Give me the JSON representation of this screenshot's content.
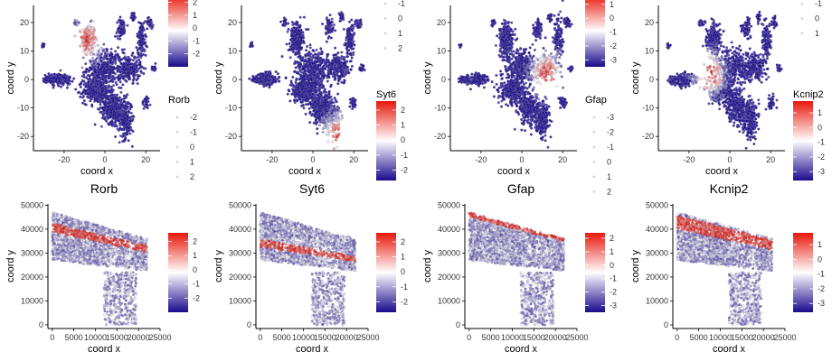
{
  "colors": {
    "low": "#1a0a8c",
    "mid": "#ffffff",
    "high": "#e8170c",
    "point_outline": "#8a8aa0",
    "grey": "#bfbfbf"
  },
  "chart_data": [
    {
      "type": "scatter",
      "title": "",
      "gene": "Rorb",
      "xlabel": "coord x",
      "ylabel": "coord y",
      "xlim": [
        -35,
        27
      ],
      "ylim": [
        -25,
        26
      ],
      "xticks": [
        "-20",
        "0",
        "20"
      ],
      "yticks": [
        "-20",
        "-10",
        "0",
        "10",
        "20"
      ],
      "color_legend": {
        "labels": [
          "2",
          "1",
          "0",
          "-1",
          "-2"
        ],
        "range": [
          -3,
          2.6
        ]
      },
      "size_legend": {
        "title": "Rorb",
        "labels": [
          "-2",
          "-1",
          "0",
          "1",
          "2"
        ]
      },
      "highlight": [
        -9,
        14
      ]
    },
    {
      "type": "scatter",
      "title": "",
      "gene": "Syt6",
      "xlabel": "coord x",
      "ylabel": "coord y",
      "xlim": [
        -35,
        27
      ],
      "ylim": [
        -25,
        26
      ],
      "xticks": [
        "-20",
        "0",
        "20"
      ],
      "yticks": [
        "-20",
        "-10",
        "0",
        "10",
        "20"
      ],
      "size_legend": {
        "title": "",
        "labels": [
          "-1",
          "0",
          "1",
          "2"
        ]
      },
      "color_legend": {
        "title": "Syt6",
        "labels": [
          "2",
          "1",
          "0",
          "-1",
          "-2"
        ],
        "range": [
          -2.7,
          2.6
        ]
      },
      "highlight": [
        12,
        -20
      ]
    },
    {
      "type": "scatter",
      "title": "",
      "gene": "Gfap",
      "xlabel": "coord x",
      "ylabel": "coord y",
      "xlim": [
        -35,
        27
      ],
      "ylim": [
        -25,
        26
      ],
      "xticks": [
        "-20",
        "0",
        "20"
      ],
      "yticks": [
        "-20",
        "-10",
        "0",
        "10",
        "20"
      ],
      "color_legend": {
        "labels": [
          "1",
          "0",
          "-1",
          "-2",
          "-3"
        ],
        "range": [
          -3.5,
          1.7
        ]
      },
      "size_legend": {
        "title": "Gfap",
        "labels": [
          "-3",
          "-2",
          "-1",
          "0",
          "1",
          "2"
        ]
      },
      "highlight": [
        12,
        2
      ]
    },
    {
      "type": "scatter",
      "title": "",
      "gene": "Kcnip2",
      "xlabel": "coord x",
      "ylabel": "coord y",
      "xlim": [
        -35,
        27
      ],
      "ylim": [
        -25,
        26
      ],
      "xticks": [
        "-20",
        "0",
        "20"
      ],
      "yticks": [
        "-20",
        "-10",
        "0",
        "10",
        "20"
      ],
      "size_legend": {
        "title": "",
        "labels": [
          "-1",
          "0",
          "1"
        ]
      },
      "color_legend": {
        "title": "Kcnip2",
        "labels": [
          "1",
          "0",
          "-1",
          "-2",
          "-3"
        ],
        "range": [
          -3.6,
          1.8
        ]
      },
      "highlight": [
        -10,
        2
      ]
    },
    {
      "type": "scatter",
      "title": "Rorb",
      "gene": "Rorb",
      "xlabel": "coord x",
      "ylabel": "coord y",
      "xlim": [
        -1000,
        25000
      ],
      "ylim": [
        -1500,
        50500
      ],
      "xticks": [
        "0",
        "5000",
        "10000",
        "15000",
        "20000",
        "25000"
      ],
      "yticks": [
        "0",
        "10000",
        "20000",
        "30000",
        "40000",
        "50000"
      ],
      "color_legend": {
        "labels": [
          "2",
          "1",
          "0",
          "-1",
          "-2"
        ],
        "range": [
          -3,
          2.6
        ]
      },
      "band": [
        0.22,
        0.42
      ]
    },
    {
      "type": "scatter",
      "title": "Syt6",
      "gene": "Syt6",
      "xlabel": "coord x",
      "ylabel": "coord y",
      "xlim": [
        -1000,
        25000
      ],
      "ylim": [
        -1500,
        50500
      ],
      "xticks": [
        "0",
        "5000",
        "10000",
        "15000",
        "20000",
        "25000"
      ],
      "yticks": [
        "0",
        "10000",
        "20000",
        "30000",
        "40000",
        "50000"
      ],
      "color_legend": {
        "labels": [
          "2",
          "1",
          "0",
          "-1",
          "-2"
        ],
        "range": [
          -2.7,
          2.6
        ]
      },
      "band": [
        0.55,
        0.72
      ]
    },
    {
      "type": "scatter",
      "title": "Gfap",
      "gene": "Gfap",
      "xlabel": "coord x",
      "ylabel": "coord y",
      "xlim": [
        -1000,
        25000
      ],
      "ylim": [
        -1500,
        50500
      ],
      "xticks": [
        "0",
        "5000",
        "10000",
        "15000",
        "20000",
        "25000"
      ],
      "yticks": [
        "0",
        "10000",
        "20000",
        "30000",
        "40000",
        "50000"
      ],
      "color_legend": {
        "labels": [
          "2",
          "1",
          "0",
          "-1",
          "-2",
          "-3"
        ],
        "range": [
          -3.5,
          2.4
        ]
      },
      "band": [
        0.0,
        0.1
      ]
    },
    {
      "type": "scatter",
      "title": "Kcnip2",
      "gene": "Kcnip2",
      "xlabel": "coord x",
      "ylabel": "coord y",
      "xlim": [
        -1000,
        25000
      ],
      "ylim": [
        -1500,
        50500
      ],
      "xticks": [
        "0",
        "5000",
        "10000",
        "15000",
        "20000",
        "25000"
      ],
      "yticks": [
        "0",
        "10000",
        "20000",
        "30000",
        "40000",
        "50000"
      ],
      "color_legend": {
        "labels": [
          "1",
          "0",
          "-1",
          "-2",
          "-3"
        ],
        "range": [
          -3.6,
          1.8
        ]
      },
      "band": [
        0.05,
        0.35
      ]
    }
  ]
}
